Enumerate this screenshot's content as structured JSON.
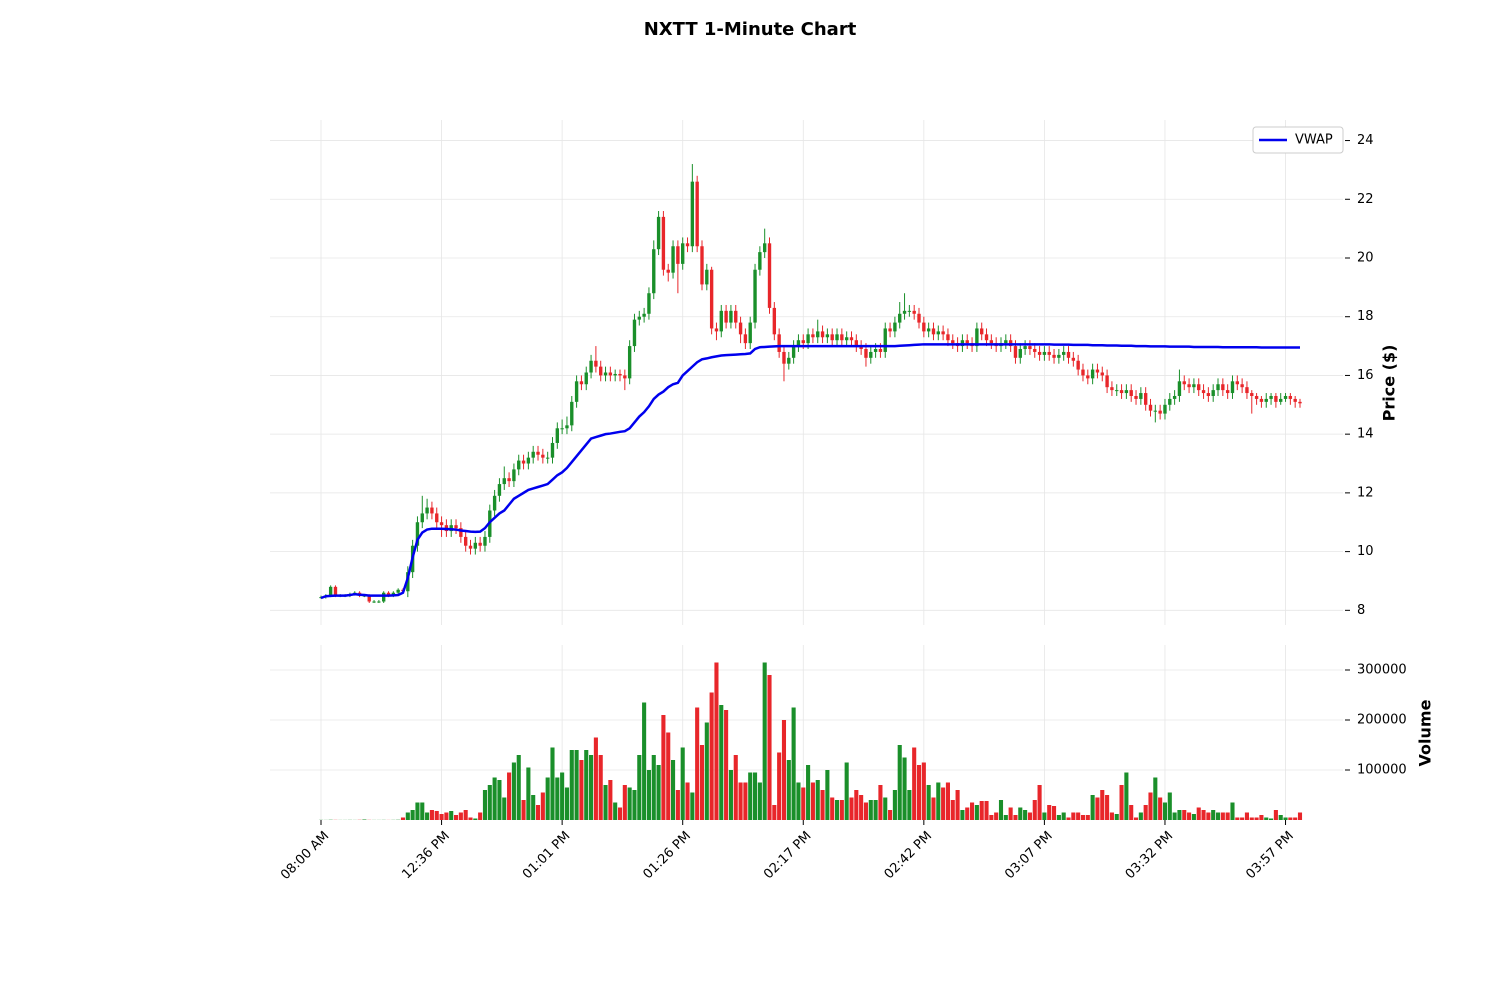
{
  "chart_data": {
    "type": "candlestick",
    "title": "NXTT 1-Minute Chart",
    "ylabel": "Price ($)",
    "volume_label": "Volume",
    "up_color": "#1a8f2a",
    "down_color": "#e8262a",
    "grid": true,
    "legend": "upper right",
    "ylim": [
      7.5,
      24.7
    ],
    "yticks": [
      8,
      10,
      12,
      14,
      16,
      18,
      20,
      22,
      24
    ],
    "volume_ylim": [
      0,
      350000
    ],
    "volume_yticks": [
      100000,
      200000,
      300000
    ],
    "categories": [
      "08:00 AM",
      null,
      null,
      null,
      null,
      null,
      null,
      null,
      null,
      null,
      null,
      null,
      null,
      null,
      null,
      null,
      null,
      null,
      null,
      null,
      null,
      null,
      null,
      null,
      null,
      "12:36 PM",
      null,
      null,
      null,
      null,
      null,
      null,
      null,
      null,
      null,
      null,
      null,
      null,
      null,
      null,
      null,
      null,
      null,
      null,
      null,
      null,
      null,
      null,
      null,
      null,
      "01:01 PM",
      null,
      null,
      null,
      null,
      null,
      null,
      null,
      null,
      null,
      null,
      null,
      null,
      null,
      null,
      null,
      null,
      null,
      null,
      null,
      null,
      null,
      null,
      null,
      null,
      "01:26 PM",
      null,
      null,
      null,
      null,
      null,
      null,
      null,
      null,
      null,
      null,
      null,
      null,
      null,
      null,
      null,
      null,
      null,
      null,
      null,
      null,
      null,
      null,
      null,
      null,
      "02:17 PM",
      null,
      null,
      null,
      null,
      null,
      null,
      null,
      null,
      null,
      null,
      null,
      null,
      null,
      null,
      null,
      null,
      null,
      null,
      null,
      null,
      null,
      null,
      null,
      null,
      "02:42 PM",
      null,
      null,
      null,
      null,
      null,
      null,
      null,
      null,
      null,
      null,
      null,
      null,
      null,
      null,
      null,
      null,
      null,
      null,
      null,
      null,
      null,
      null,
      null,
      null,
      "03:07 PM",
      null,
      null,
      null,
      null,
      null,
      null,
      null,
      null,
      null,
      null,
      null,
      null,
      null,
      null,
      null,
      null,
      null,
      null,
      null,
      null,
      null,
      null,
      null,
      null,
      "03:32 PM",
      null,
      null,
      null,
      null,
      null,
      null,
      null,
      null,
      null,
      null,
      null,
      null,
      null,
      null,
      null,
      null,
      null,
      null,
      null,
      null,
      null,
      null,
      null,
      null,
      "03:57 PM",
      null,
      null,
      null
    ],
    "open": [
      8.45,
      8.45,
      8.5,
      8.8,
      8.5,
      8.5,
      8.5,
      8.55,
      8.6,
      8.5,
      8.5,
      8.3,
      8.3,
      8.3,
      8.6,
      8.5,
      8.6,
      8.7,
      8.65,
      9.3,
      10.2,
      11.0,
      11.3,
      11.5,
      11.3,
      11.0,
      10.9,
      10.7,
      10.9,
      10.8,
      10.5,
      10.2,
      10.1,
      10.3,
      10.2,
      10.5,
      11.4,
      11.9,
      12.3,
      12.5,
      12.4,
      12.8,
      13.1,
      13.0,
      13.2,
      13.4,
      13.3,
      13.2,
      13.2,
      13.7,
      14.2,
      14.2,
      14.3,
      15.1,
      15.8,
      15.7,
      16.1,
      16.5,
      16.3,
      16.0,
      16.1,
      16.0,
      16.05,
      16.0,
      15.9,
      17.0,
      17.9,
      18.0,
      18.1,
      18.8,
      20.3,
      21.4,
      19.6,
      19.5,
      20.4,
      19.8,
      20.5,
      20.4,
      22.6,
      20.4,
      19.1,
      19.6,
      17.6,
      17.5,
      18.2,
      17.8,
      18.2,
      17.8,
      17.4,
      17.1,
      17.8,
      19.6,
      20.2,
      20.5,
      18.3,
      17.4,
      16.8,
      16.4,
      16.6,
      17.0,
      17.2,
      17.1,
      17.4,
      17.3,
      17.5,
      17.3,
      17.4,
      17.2,
      17.4,
      17.2,
      17.3,
      17.2,
      17.0,
      16.9,
      16.6,
      16.8,
      16.9,
      16.8,
      17.6,
      17.5,
      17.8,
      18.1,
      18.2,
      18.2,
      18.1,
      17.8,
      17.5,
      17.6,
      17.4,
      17.5,
      17.4,
      17.2,
      17.1,
      17.0,
      17.2,
      17.1,
      17.0,
      17.6,
      17.4,
      17.2,
      17.1,
      17.0,
      17.1,
      17.2,
      17.0,
      16.6,
      16.9,
      17.0,
      16.9,
      16.8,
      16.7,
      16.8,
      16.7,
      16.6,
      16.7,
      16.8,
      16.6,
      16.5,
      16.2,
      16.0,
      15.9,
      16.2,
      16.1,
      16.0,
      15.6,
      15.5,
      15.5,
      15.4,
      15.5,
      15.3,
      15.2,
      15.4,
      15.0,
      14.8,
      14.8,
      14.7,
      15.0,
      15.2,
      15.3,
      15.8,
      15.7,
      15.6,
      15.7,
      15.5,
      15.4,
      15.3,
      15.5,
      15.7,
      15.5,
      15.4,
      15.8,
      15.7,
      15.6,
      15.4,
      15.3,
      15.2,
      15.1,
      15.2,
      15.3,
      15.1,
      15.2,
      15.3,
      15.2,
      15.1
    ],
    "high": [
      8.5,
      8.55,
      8.85,
      8.85,
      8.55,
      8.55,
      8.6,
      8.65,
      8.65,
      8.55,
      8.55,
      8.35,
      8.35,
      8.65,
      8.65,
      8.65,
      8.75,
      8.75,
      9.5,
      10.4,
      11.2,
      11.9,
      11.8,
      11.7,
      11.5,
      11.2,
      11.1,
      11.1,
      11.1,
      11.0,
      10.7,
      10.4,
      10.5,
      10.5,
      10.7,
      11.6,
      12.1,
      12.5,
      12.9,
      12.7,
      13.0,
      13.3,
      13.3,
      13.4,
      13.6,
      13.6,
      13.5,
      13.4,
      13.9,
      14.4,
      14.5,
      14.6,
      15.3,
      16.0,
      16.0,
      16.3,
      16.7,
      17.0,
      16.5,
      16.3,
      16.3,
      16.2,
      16.2,
      16.2,
      17.2,
      18.1,
      18.2,
      18.3,
      19.0,
      20.6,
      21.6,
      21.6,
      19.8,
      20.6,
      20.6,
      20.7,
      20.7,
      23.2,
      22.8,
      20.6,
      19.8,
      19.7,
      17.8,
      18.4,
      18.4,
      18.4,
      18.4,
      18.0,
      17.6,
      18.0,
      19.8,
      20.4,
      21.0,
      20.7,
      18.5,
      17.6,
      17.0,
      16.8,
      17.2,
      17.4,
      17.4,
      17.6,
      17.6,
      17.9,
      17.7,
      17.6,
      17.6,
      17.6,
      17.6,
      17.5,
      17.5,
      17.4,
      17.2,
      17.1,
      17.0,
      17.1,
      17.1,
      17.8,
      17.8,
      18.0,
      18.5,
      18.8,
      18.4,
      18.4,
      18.3,
      18.0,
      17.8,
      17.8,
      17.7,
      17.7,
      17.6,
      17.4,
      17.3,
      17.4,
      17.4,
      17.3,
      17.8,
      17.8,
      17.6,
      17.4,
      17.3,
      17.3,
      17.4,
      17.4,
      17.2,
      17.1,
      17.2,
      17.2,
      17.1,
      17.0,
      17.0,
      17.0,
      16.9,
      16.9,
      17.0,
      17.0,
      16.8,
      16.7,
      16.4,
      16.2,
      16.4,
      16.4,
      16.3,
      16.2,
      15.8,
      15.7,
      15.7,
      15.7,
      15.7,
      15.5,
      15.6,
      15.6,
      15.2,
      15.0,
      15.0,
      15.2,
      15.4,
      15.5,
      16.2,
      16.0,
      15.9,
      15.9,
      15.9,
      15.7,
      15.6,
      15.7,
      15.9,
      15.9,
      15.7,
      16.0,
      16.0,
      15.9,
      15.8,
      15.5,
      15.4,
      15.3,
      15.4,
      15.4,
      15.4,
      15.4,
      15.4,
      15.4,
      15.3,
      15.2
    ],
    "low": [
      8.4,
      8.4,
      8.45,
      8.45,
      8.45,
      8.45,
      8.45,
      8.5,
      8.45,
      8.45,
      8.25,
      8.25,
      8.25,
      8.25,
      8.45,
      8.45,
      8.55,
      8.6,
      8.45,
      9.1,
      10.0,
      10.8,
      11.1,
      11.1,
      10.8,
      10.5,
      10.5,
      10.5,
      10.6,
      10.3,
      10.0,
      9.9,
      9.9,
      10.0,
      10.0,
      10.3,
      11.2,
      11.7,
      12.1,
      12.2,
      12.2,
      12.6,
      12.8,
      12.8,
      13.0,
      13.1,
      13.0,
      13.0,
      13.0,
      13.5,
      14.0,
      14.0,
      14.1,
      14.9,
      15.5,
      15.5,
      15.9,
      16.1,
      15.8,
      15.8,
      15.8,
      15.8,
      15.8,
      15.5,
      15.7,
      16.8,
      17.7,
      17.8,
      17.9,
      18.6,
      20.1,
      19.4,
      19.2,
      19.3,
      18.8,
      19.6,
      20.2,
      20.2,
      20.2,
      18.9,
      18.9,
      17.4,
      17.2,
      17.3,
      17.6,
      17.6,
      17.6,
      17.1,
      16.9,
      16.9,
      17.6,
      19.4,
      20.0,
      18.1,
      17.2,
      16.6,
      15.8,
      16.2,
      16.4,
      16.8,
      16.9,
      16.9,
      17.1,
      17.1,
      17.1,
      17.1,
      17.0,
      17.0,
      17.0,
      17.0,
      17.0,
      16.8,
      16.7,
      16.3,
      16.4,
      16.6,
      16.6,
      16.6,
      17.3,
      17.3,
      17.6,
      17.9,
      18.0,
      17.9,
      17.6,
      17.3,
      17.3,
      17.2,
      17.2,
      17.2,
      17.0,
      16.9,
      16.8,
      16.8,
      16.9,
      16.8,
      16.8,
      17.2,
      17.0,
      16.9,
      16.8,
      16.8,
      16.9,
      16.8,
      16.4,
      16.4,
      16.7,
      16.7,
      16.6,
      16.5,
      16.5,
      16.5,
      16.4,
      16.4,
      16.5,
      16.4,
      16.3,
      16.0,
      15.8,
      15.7,
      15.7,
      15.9,
      15.8,
      15.4,
      15.3,
      15.3,
      15.2,
      15.2,
      15.1,
      15.0,
      15.0,
      14.8,
      14.6,
      14.4,
      14.5,
      14.5,
      14.8,
      15.0,
      15.1,
      15.5,
      15.4,
      15.4,
      15.3,
      15.2,
      15.1,
      15.1,
      15.3,
      15.3,
      15.2,
      15.2,
      15.5,
      15.4,
      15.2,
      14.7,
      15.0,
      14.9,
      14.9,
      15.0,
      14.9,
      15.0,
      15.1,
      15.0,
      14.9,
      14.9
    ],
    "close": [
      8.45,
      8.5,
      8.8,
      8.5,
      8.5,
      8.5,
      8.55,
      8.6,
      8.5,
      8.5,
      8.3,
      8.3,
      8.3,
      8.6,
      8.5,
      8.6,
      8.7,
      8.65,
      9.3,
      10.2,
      11.0,
      11.3,
      11.5,
      11.3,
      11.0,
      10.9,
      10.7,
      10.9,
      10.8,
      10.5,
      10.2,
      10.1,
      10.3,
      10.2,
      10.5,
      11.4,
      11.9,
      12.3,
      12.5,
      12.4,
      12.8,
      13.1,
      13.0,
      13.2,
      13.4,
      13.3,
      13.2,
      13.2,
      13.7,
      14.2,
      14.2,
      14.3,
      15.1,
      15.8,
      15.7,
      16.1,
      16.5,
      16.3,
      16.0,
      16.1,
      16.0,
      16.05,
      16.0,
      15.9,
      17.0,
      17.9,
      18.0,
      18.1,
      18.8,
      20.3,
      21.4,
      19.6,
      19.5,
      20.4,
      19.8,
      20.5,
      20.4,
      22.6,
      20.4,
      19.1,
      19.6,
      17.6,
      17.5,
      18.2,
      17.8,
      18.2,
      17.8,
      17.4,
      17.1,
      17.8,
      19.6,
      20.2,
      20.5,
      18.3,
      17.4,
      16.8,
      16.4,
      16.6,
      17.0,
      17.2,
      17.1,
      17.4,
      17.3,
      17.5,
      17.3,
      17.4,
      17.2,
      17.4,
      17.2,
      17.3,
      17.2,
      17.0,
      16.9,
      16.6,
      16.8,
      16.9,
      16.8,
      17.6,
      17.5,
      17.8,
      18.1,
      18.2,
      18.2,
      18.1,
      17.8,
      17.5,
      17.6,
      17.4,
      17.5,
      17.4,
      17.2,
      17.1,
      17.0,
      17.2,
      17.1,
      17.0,
      17.6,
      17.4,
      17.2,
      17.1,
      17.0,
      17.1,
      17.2,
      17.0,
      16.6,
      16.9,
      17.0,
      16.9,
      16.8,
      16.7,
      16.8,
      16.7,
      16.6,
      16.7,
      16.8,
      16.6,
      16.5,
      16.2,
      16.0,
      15.9,
      16.2,
      16.1,
      16.0,
      15.6,
      15.5,
      15.5,
      15.4,
      15.5,
      15.3,
      15.2,
      15.4,
      15.0,
      14.8,
      14.8,
      14.7,
      15.0,
      15.2,
      15.3,
      15.8,
      15.7,
      15.6,
      15.7,
      15.5,
      15.4,
      15.3,
      15.5,
      15.7,
      15.5,
      15.4,
      15.8,
      15.7,
      15.6,
      15.4,
      15.3,
      15.2,
      15.1,
      15.2,
      15.3,
      15.1,
      15.2,
      15.3,
      15.2,
      15.1,
      15.05
    ],
    "volume": [
      300,
      200,
      500,
      300,
      200,
      200,
      300,
      200,
      400,
      1000,
      300,
      200,
      200,
      300,
      200,
      300,
      500,
      5000,
      15000,
      20000,
      35000,
      35000,
      15000,
      20000,
      18000,
      12000,
      15000,
      18000,
      10000,
      15000,
      20000,
      5000,
      3000,
      15000,
      60000,
      70000,
      85000,
      80000,
      45000,
      95000,
      115000,
      130000,
      40000,
      105000,
      50000,
      30000,
      55000,
      85000,
      145000,
      85000,
      95000,
      65000,
      140000,
      140000,
      120000,
      140000,
      130000,
      165000,
      130000,
      70000,
      80000,
      35000,
      25000,
      70000,
      65000,
      60000,
      130000,
      235000,
      100000,
      130000,
      110000,
      210000,
      175000,
      120000,
      60000,
      145000,
      75000,
      55000,
      225000,
      150000,
      195000,
      255000,
      315000,
      230000,
      220000,
      100000,
      130000,
      75000,
      75000,
      95000,
      95000,
      75000,
      315000,
      290000,
      30000,
      135000,
      200000,
      120000,
      225000,
      75000,
      65000,
      110000,
      75000,
      80000,
      60000,
      100000,
      45000,
      40000,
      40000,
      115000,
      45000,
      60000,
      50000,
      35000,
      40000,
      40000,
      70000,
      45000,
      20000,
      60000,
      150000,
      125000,
      60000,
      145000,
      110000,
      115000,
      70000,
      45000,
      75000,
      65000,
      75000,
      40000,
      60000,
      20000,
      25000,
      35000,
      30000,
      38000,
      38000,
      10000,
      15000,
      40000,
      10000,
      25000,
      10000,
      25000,
      20000,
      15000,
      40000,
      70000,
      15000,
      30000,
      28000,
      10000,
      15000,
      5000,
      15000,
      15000,
      10000,
      10000,
      50000,
      45000,
      60000,
      50000,
      15000,
      12000,
      70000,
      95000,
      30000,
      5000,
      15000,
      30000,
      55000,
      85000,
      45000,
      35000,
      55000,
      15000,
      20000,
      20000,
      15000,
      12000,
      25000,
      20000,
      15000,
      20000,
      15000,
      15000,
      15000,
      35000,
      5000,
      5000,
      15000,
      5000,
      5000,
      10000,
      5000,
      3000,
      20000,
      10000,
      5000,
      5000,
      5000,
      15000
    ],
    "vwap": {
      "name": "VWAP",
      "color": "#0000ee",
      "values": [
        8.42,
        8.48,
        8.49,
        8.5,
        8.5,
        8.5,
        8.52,
        8.55,
        8.53,
        8.52,
        8.5,
        8.5,
        8.5,
        8.5,
        8.5,
        8.51,
        8.52,
        8.6,
        9.1,
        9.8,
        10.4,
        10.65,
        10.75,
        10.78,
        10.78,
        10.78,
        10.77,
        10.76,
        10.75,
        10.72,
        10.7,
        10.68,
        10.67,
        10.68,
        10.8,
        11.0,
        11.15,
        11.3,
        11.4,
        11.6,
        11.8,
        11.9,
        12.0,
        12.1,
        12.15,
        12.2,
        12.25,
        12.3,
        12.45,
        12.6,
        12.7,
        12.85,
        13.05,
        13.25,
        13.45,
        13.65,
        13.85,
        13.9,
        13.95,
        14.0,
        14.02,
        14.05,
        14.08,
        14.1,
        14.2,
        14.4,
        14.6,
        14.75,
        14.95,
        15.2,
        15.35,
        15.45,
        15.6,
        15.7,
        15.75,
        16.0,
        16.15,
        16.3,
        16.45,
        16.55,
        16.58,
        16.62,
        16.65,
        16.68,
        16.69,
        16.7,
        16.71,
        16.72,
        16.73,
        16.75,
        16.9,
        16.96,
        16.97,
        16.98,
        16.99,
        17.0,
        17.0,
        17.0,
        17.0,
        17.0,
        17.0,
        17.0,
        17.0,
        17.0,
        17.0,
        17.0,
        17.0,
        17.0,
        17.0,
        17.0,
        17.0,
        17.0,
        17.0,
        17.0,
        17.0,
        17.0,
        17.0,
        17.0,
        17.0,
        17.0,
        17.01,
        17.02,
        17.03,
        17.04,
        17.05,
        17.06,
        17.06,
        17.06,
        17.06,
        17.06,
        17.06,
        17.06,
        17.06,
        17.06,
        17.06,
        17.06,
        17.06,
        17.06,
        17.06,
        17.06,
        17.06,
        17.06,
        17.06,
        17.06,
        17.06,
        17.06,
        17.06,
        17.06,
        17.06,
        17.06,
        17.06,
        17.06,
        17.05,
        17.05,
        17.05,
        17.05,
        17.04,
        17.04,
        17.04,
        17.04,
        17.03,
        17.03,
        17.03,
        17.02,
        17.02,
        17.02,
        17.01,
        17.01,
        17.01,
        17.0,
        17.0,
        17.0,
        16.99,
        16.99,
        16.99,
        16.99,
        16.98,
        16.98,
        16.98,
        16.98,
        16.98,
        16.97,
        16.97,
        16.97,
        16.97,
        16.97,
        16.97,
        16.96,
        16.96,
        16.96,
        16.96,
        16.96,
        16.96,
        16.96,
        16.96,
        16.95,
        16.95,
        16.95,
        16.95,
        16.95,
        16.95,
        16.95,
        16.95,
        16.95
      ]
    }
  }
}
